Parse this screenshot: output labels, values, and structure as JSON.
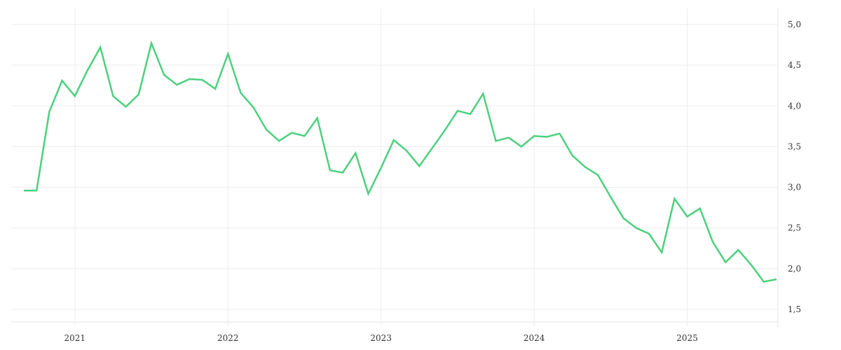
{
  "chart_data": {
    "type": "line",
    "title": "",
    "xlabel": "",
    "ylabel": "",
    "ylim": [
      1.3,
      5.1
    ],
    "y_ticks": [
      {
        "value": 1.5,
        "label": "1,5"
      },
      {
        "value": 2.0,
        "label": "2,0"
      },
      {
        "value": 2.5,
        "label": "2,5"
      },
      {
        "value": 3.0,
        "label": "3,0"
      },
      {
        "value": 3.5,
        "label": "3,5"
      },
      {
        "value": 4.0,
        "label": "4,0"
      },
      {
        "value": 4.5,
        "label": "4,5"
      },
      {
        "value": 5.0,
        "label": "5,0"
      }
    ],
    "x_ticks": [
      {
        "value": "2021-01",
        "label": "2021"
      },
      {
        "value": "2022-01",
        "label": "2022"
      },
      {
        "value": "2023-01",
        "label": "2023"
      },
      {
        "value": "2024-01",
        "label": "2024"
      },
      {
        "value": "2025-01",
        "label": "2025"
      }
    ],
    "grid": true,
    "legend": "none",
    "series": [
      {
        "color": "#4cd07d",
        "x": [
          "2020-09",
          "2020-10",
          "2020-11",
          "2020-12",
          "2021-01",
          "2021-02",
          "2021-03",
          "2021-04",
          "2021-05",
          "2021-06",
          "2021-07",
          "2021-08",
          "2021-09",
          "2021-10",
          "2021-11",
          "2021-12",
          "2022-01",
          "2022-02",
          "2022-03",
          "2022-04",
          "2022-05",
          "2022-06",
          "2022-07",
          "2022-08",
          "2022-09",
          "2022-10",
          "2022-11",
          "2022-12",
          "2023-01",
          "2023-02",
          "2023-03",
          "2023-04",
          "2023-05",
          "2023-06",
          "2023-07",
          "2023-08",
          "2023-09",
          "2023-10",
          "2023-11",
          "2023-12",
          "2024-01",
          "2024-02",
          "2024-03",
          "2024-04",
          "2024-05",
          "2024-06",
          "2024-07",
          "2024-08",
          "2024-09",
          "2024-10",
          "2024-11",
          "2024-12",
          "2025-01",
          "2025-02",
          "2025-03",
          "2025-04",
          "2025-05",
          "2025-06",
          "2025-07",
          "2025-08"
        ],
        "values": [
          2.96,
          2.96,
          3.93,
          4.31,
          4.12,
          4.44,
          4.72,
          4.12,
          3.99,
          4.14,
          4.77,
          4.38,
          4.26,
          4.33,
          4.32,
          4.21,
          4.64,
          4.16,
          3.98,
          3.71,
          3.57,
          3.67,
          3.63,
          3.85,
          3.21,
          3.18,
          3.42,
          2.92,
          3.24,
          3.58,
          3.45,
          3.26,
          3.48,
          3.7,
          3.94,
          3.9,
          4.15,
          3.57,
          3.61,
          3.5,
          3.63,
          3.62,
          3.66,
          3.39,
          3.25,
          3.15,
          2.88,
          2.62,
          2.5,
          2.43,
          2.2,
          2.86,
          2.64,
          2.74,
          2.33,
          2.08,
          2.23,
          2.05,
          1.84,
          1.87
        ]
      }
    ]
  }
}
